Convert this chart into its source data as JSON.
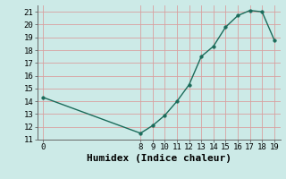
{
  "x": [
    0,
    8,
    9,
    10,
    11,
    12,
    13,
    14,
    15,
    16,
    17,
    18,
    19
  ],
  "y": [
    14.3,
    11.5,
    12.1,
    12.9,
    14.0,
    15.3,
    17.5,
    18.3,
    19.8,
    20.7,
    21.1,
    21.0,
    18.8
  ],
  "line_color": "#1a6b5a",
  "marker_color": "#1a6b5a",
  "bg_color": "#cceae7",
  "grid_color_major": "#d9a0a0",
  "grid_color_minor": "#d9a0a0",
  "xlabel": "Humidex (Indice chaleur)",
  "xlim": [
    -0.5,
    19.5
  ],
  "ylim": [
    11,
    21.5
  ],
  "xticks": [
    0,
    8,
    9,
    10,
    11,
    12,
    13,
    14,
    15,
    16,
    17,
    18,
    19
  ],
  "yticks": [
    11,
    12,
    13,
    14,
    15,
    16,
    17,
    18,
    19,
    20,
    21
  ],
  "xlabel_fontsize": 8,
  "tick_fontsize": 6.5,
  "font_family": "monospace",
  "linewidth": 1.0,
  "markersize": 2.5
}
